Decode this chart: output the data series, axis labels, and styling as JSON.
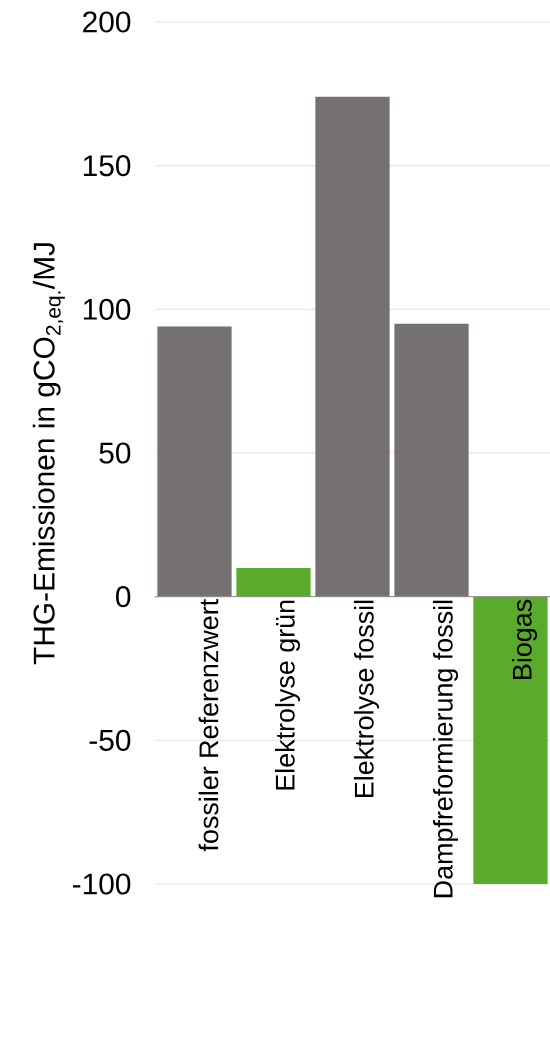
{
  "chart_data": {
    "type": "bar",
    "ylabel": "THG-Emissionen in gCO$_{2,eq.}$/MJ",
    "categories": [
      "fossiler Referenzwert",
      "Elektrolyse grün",
      "Elektrolyse fossil",
      "Dampfreformierung fossil",
      "Biogas"
    ],
    "values": [
      94,
      10,
      174,
      95,
      -100
    ],
    "colors": [
      "#767171",
      "#5aab2c",
      "#767171",
      "#767171",
      "#5aab2c"
    ],
    "ylim": [
      -100,
      200
    ],
    "yticks": [
      -100,
      -50,
      0,
      50,
      100,
      150,
      200
    ],
    "grid": "y"
  }
}
